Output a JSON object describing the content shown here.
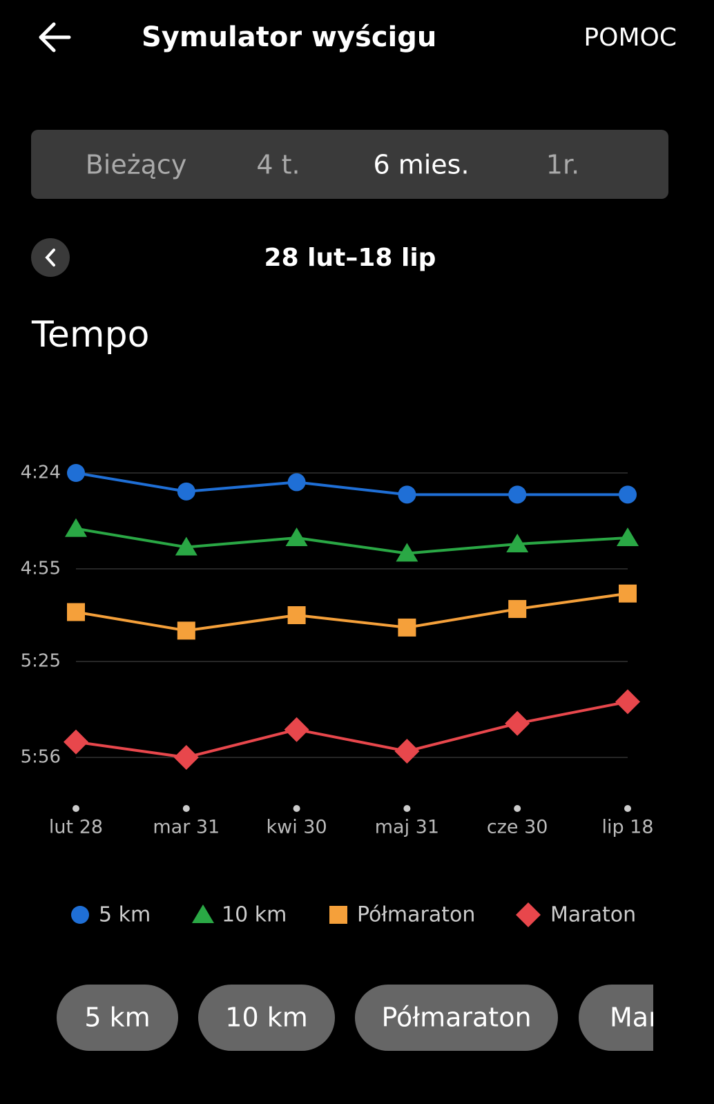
{
  "header": {
    "title": "Symulator wyścigu",
    "action": "POMOC"
  },
  "tabs": {
    "items": [
      "Bieżący",
      "4 t.",
      "6 mies.",
      "1r."
    ],
    "active": 2
  },
  "date_range": "28 lut–18 lip",
  "section_title": "Tempo",
  "chart_data": {
    "type": "line",
    "categories": [
      "lut 28",
      "mar 31",
      "kwi 30",
      "maj 31",
      "cze 30",
      "lip 18"
    ],
    "series": [
      {
        "name": "5 km",
        "color": "#1f6fd6",
        "marker": "circle",
        "values": [
          264,
          270,
          267,
          271,
          271,
          271
        ]
      },
      {
        "name": "10 km",
        "color": "#2aa845",
        "marker": "triangle",
        "values": [
          282,
          288,
          285,
          290,
          287,
          285
        ]
      },
      {
        "name": "Półmaraton",
        "color": "#f5a03a",
        "marker": "square",
        "values": [
          309,
          315,
          310,
          314,
          308,
          303
        ]
      },
      {
        "name": "Maraton",
        "color": "#e8474c",
        "marker": "diamond",
        "values": [
          351,
          356,
          347,
          354,
          345,
          338
        ]
      }
    ],
    "ylim": [
      356,
      264
    ],
    "yticks": [
      {
        "value": 264,
        "label": "4:24"
      },
      {
        "value": 295,
        "label": "4:55"
      },
      {
        "value": 325,
        "label": "5:25"
      },
      {
        "value": 356,
        "label": "5:56"
      }
    ],
    "grid": true
  },
  "chips": [
    "5 km",
    "10 km",
    "Półmaraton",
    "Maraton"
  ]
}
